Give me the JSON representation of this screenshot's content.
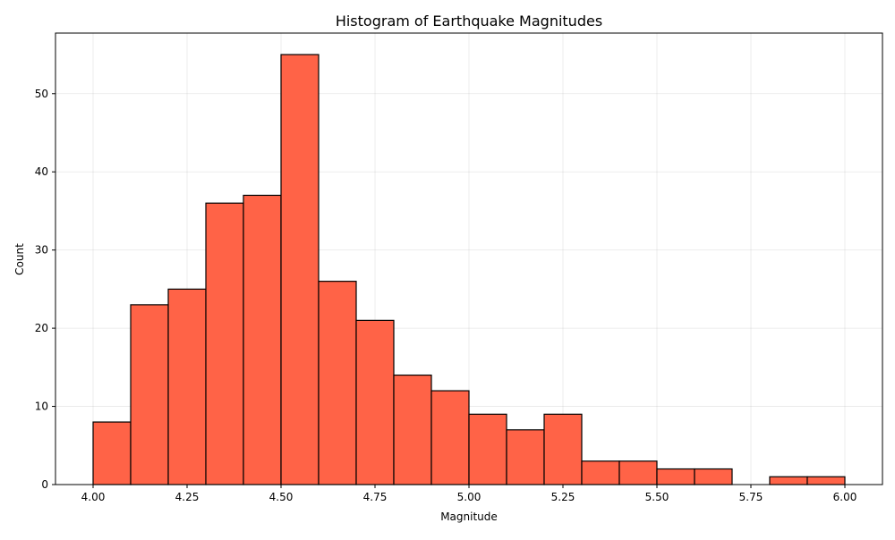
{
  "chart_data": {
    "type": "bar",
    "title": "Histogram of Earthquake Magnitudes",
    "xlabel": "Magnitude",
    "ylabel": "Count",
    "bins": [
      {
        "start": 4.0,
        "end": 4.1,
        "count": 8
      },
      {
        "start": 4.1,
        "end": 4.2,
        "count": 23
      },
      {
        "start": 4.2,
        "end": 4.3,
        "count": 25
      },
      {
        "start": 4.3,
        "end": 4.4,
        "count": 36
      },
      {
        "start": 4.4,
        "end": 4.5,
        "count": 37
      },
      {
        "start": 4.5,
        "end": 4.6,
        "count": 55
      },
      {
        "start": 4.6,
        "end": 4.7,
        "count": 26
      },
      {
        "start": 4.7,
        "end": 4.8,
        "count": 21
      },
      {
        "start": 4.8,
        "end": 4.9,
        "count": 14
      },
      {
        "start": 4.9,
        "end": 5.0,
        "count": 12
      },
      {
        "start": 5.0,
        "end": 5.1,
        "count": 9
      },
      {
        "start": 5.1,
        "end": 5.2,
        "count": 7
      },
      {
        "start": 5.2,
        "end": 5.3,
        "count": 9
      },
      {
        "start": 5.3,
        "end": 5.4,
        "count": 3
      },
      {
        "start": 5.4,
        "end": 5.5,
        "count": 3
      },
      {
        "start": 5.5,
        "end": 5.6,
        "count": 2
      },
      {
        "start": 5.6,
        "end": 5.7,
        "count": 2
      },
      {
        "start": 5.7,
        "end": 5.8,
        "count": 0
      },
      {
        "start": 5.8,
        "end": 5.9,
        "count": 1
      },
      {
        "start": 5.9,
        "end": 6.0,
        "count": 1
      }
    ],
    "xlim": [
      3.9,
      6.1
    ],
    "ylim": [
      0,
      57.75
    ],
    "xticks": [
      "4.00",
      "4.25",
      "4.50",
      "4.75",
      "5.00",
      "5.25",
      "5.50",
      "5.75",
      "6.00"
    ],
    "yticks": [
      "0",
      "10",
      "20",
      "30",
      "40",
      "50"
    ],
    "grid": true,
    "bar_color": "#ff6347",
    "edge_color": "#000000"
  }
}
